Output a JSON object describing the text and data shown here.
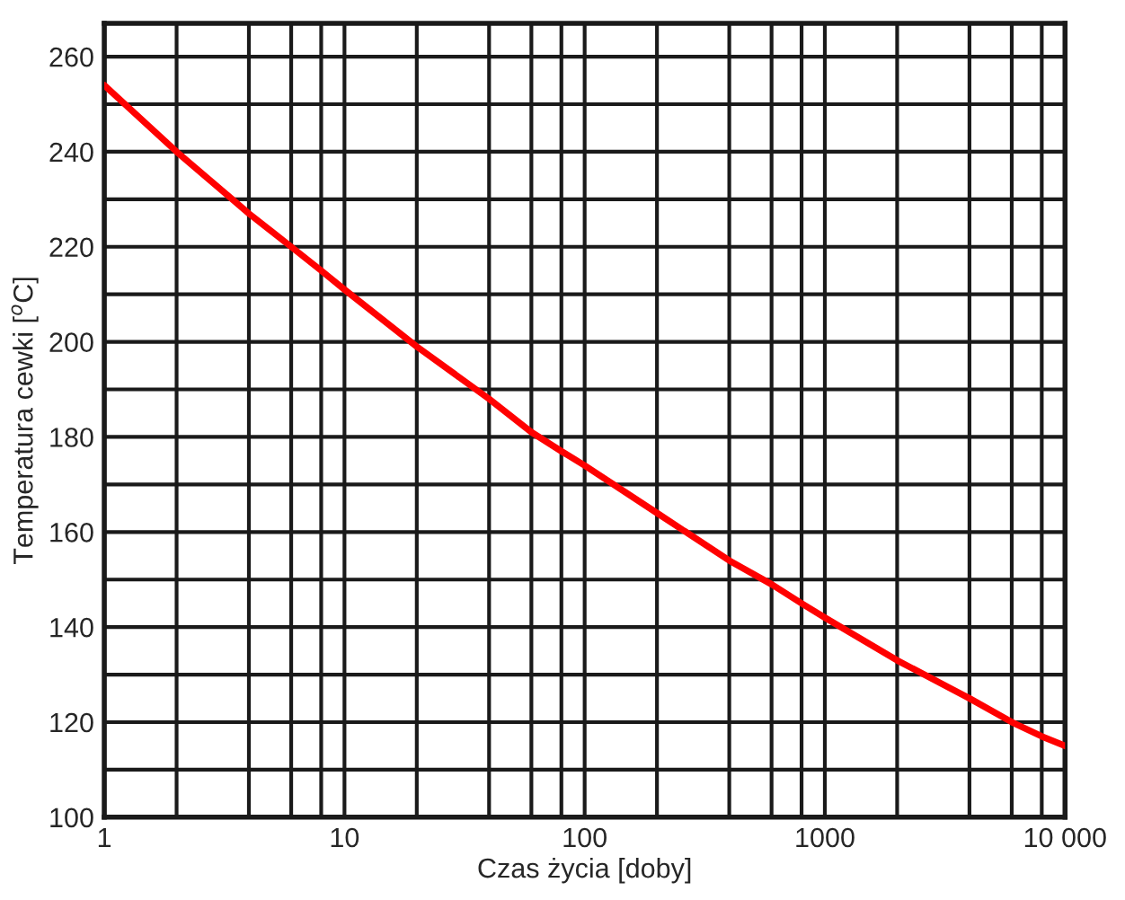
{
  "chart_data": {
    "type": "line",
    "xlabel": "Czas życia [doby]",
    "ylabel": "Temperatura cewki [$^{o}$C]",
    "x": [
      1,
      2,
      4,
      6,
      8,
      10,
      20,
      40,
      60,
      80,
      100,
      200,
      400,
      600,
      800,
      1000,
      2000,
      4000,
      6000,
      8000,
      10000
    ],
    "series": [
      {
        "color": "#ff0000",
        "values": [
          254,
          240,
          227,
          220,
          215,
          211,
          199,
          188,
          181,
          177,
          174,
          164,
          154,
          149,
          145,
          142,
          133,
          125,
          120,
          117,
          115
        ]
      }
    ],
    "log": "x",
    "xlim": [
      1,
      10000
    ],
    "xticks": [
      1,
      {
        "value": 2,
        "label": null
      },
      {
        "value": 4,
        "label": null
      },
      {
        "value": 6,
        "label": null
      },
      {
        "value": 8,
        "label": null
      },
      10,
      {
        "value": 20,
        "label": null
      },
      {
        "value": 40,
        "label": null
      },
      {
        "value": 60,
        "label": null
      },
      {
        "value": 80,
        "label": null
      },
      100,
      {
        "value": 200,
        "label": null
      },
      {
        "value": 400,
        "label": null
      },
      {
        "value": 600,
        "label": null
      },
      {
        "value": 800,
        "label": null
      },
      1000,
      {
        "value": 2000,
        "label": null
      },
      {
        "value": 4000,
        "label": null
      },
      {
        "value": 6000,
        "label": null
      },
      {
        "value": 8000,
        "label": null
      },
      {
        "value": 10000,
        "label": "10 000"
      }
    ],
    "ylim": [
      100,
      267
    ],
    "yticks": [
      100,
      {
        "value": 110,
        "label": null
      },
      120,
      {
        "value": 130,
        "label": null
      },
      140,
      {
        "value": 150,
        "label": null
      },
      160,
      {
        "value": 170,
        "label": null
      },
      180,
      {
        "value": 190,
        "label": null
      },
      200,
      {
        "value": 210,
        "label": null
      },
      220,
      {
        "value": 230,
        "label": null
      },
      240,
      {
        "value": 250,
        "label": null
      },
      260
    ],
    "grid": true,
    "marker": "none",
    "line_style": "solid"
  }
}
